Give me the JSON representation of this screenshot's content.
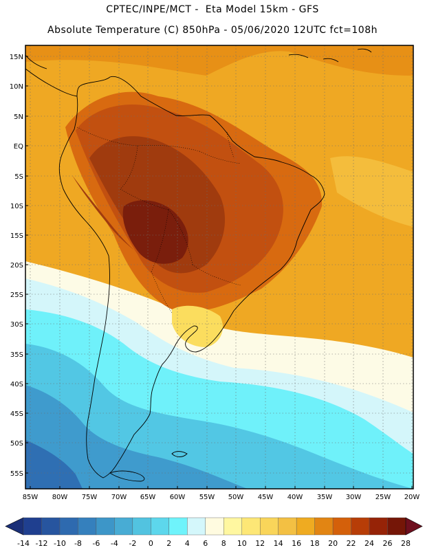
{
  "header": {
    "title_line1": "CPTEC/INPE/MCT -  Eta Model 15km - GFS",
    "title_line2": "Absolute Temperature (C) 850hPa - 05/06/2020 12UTC fct=108h"
  },
  "axes": {
    "lat_labels": [
      "15N",
      "10N",
      "5N",
      "EQ",
      "5S",
      "10S",
      "15S",
      "20S",
      "25S",
      "30S",
      "35S",
      "40S",
      "45S",
      "50S",
      "55S"
    ],
    "lon_labels": [
      "85W",
      "80W",
      "75W",
      "70W",
      "65W",
      "60W",
      "55W",
      "50W",
      "45W",
      "40W",
      "35W",
      "30W",
      "25W",
      "20W"
    ]
  },
  "colorbar": {
    "labels": [
      "-14",
      "-12",
      "-10",
      "-8",
      "-6",
      "-4",
      "-2",
      "0",
      "2",
      "4",
      "6",
      "8",
      "10",
      "12",
      "14",
      "16",
      "18",
      "20",
      "22",
      "24",
      "26",
      "28"
    ],
    "colors": [
      "#1f3f8f",
      "#27559f",
      "#2e6aaf",
      "#3580bd",
      "#3d96c8",
      "#48acd4",
      "#52c3e0",
      "#5dd7ec",
      "#6ff3fb",
      "#d4f7fb",
      "#fffbe0",
      "#fff7a0",
      "#fde776",
      "#f9d55a",
      "#f3c043",
      "#efab21",
      "#e28513",
      "#d4600a",
      "#b73d07",
      "#962307",
      "#751607"
    ],
    "under_color": "#1a2f78",
    "over_color": "#6e0f1e"
  },
  "temperature_colors": {
    "very_hot": "#7a1e0c",
    "hot": "#a03b0e",
    "warm_red": "#c25010",
    "warm_orange": "#d86a10",
    "orange": "#e79016",
    "orange_light": "#efa823",
    "yellow_dark": "#f4bd3c",
    "yellow": "#fbdd5e",
    "pale_yellow": "#fff8b8",
    "cream": "#fdfbe6",
    "pale_cyan": "#d4f6fa",
    "cyan": "#6ff1fa",
    "light_blue": "#52c7e4",
    "blue": "#3f9bcd",
    "deep_blue": "#2f6fb3"
  }
}
